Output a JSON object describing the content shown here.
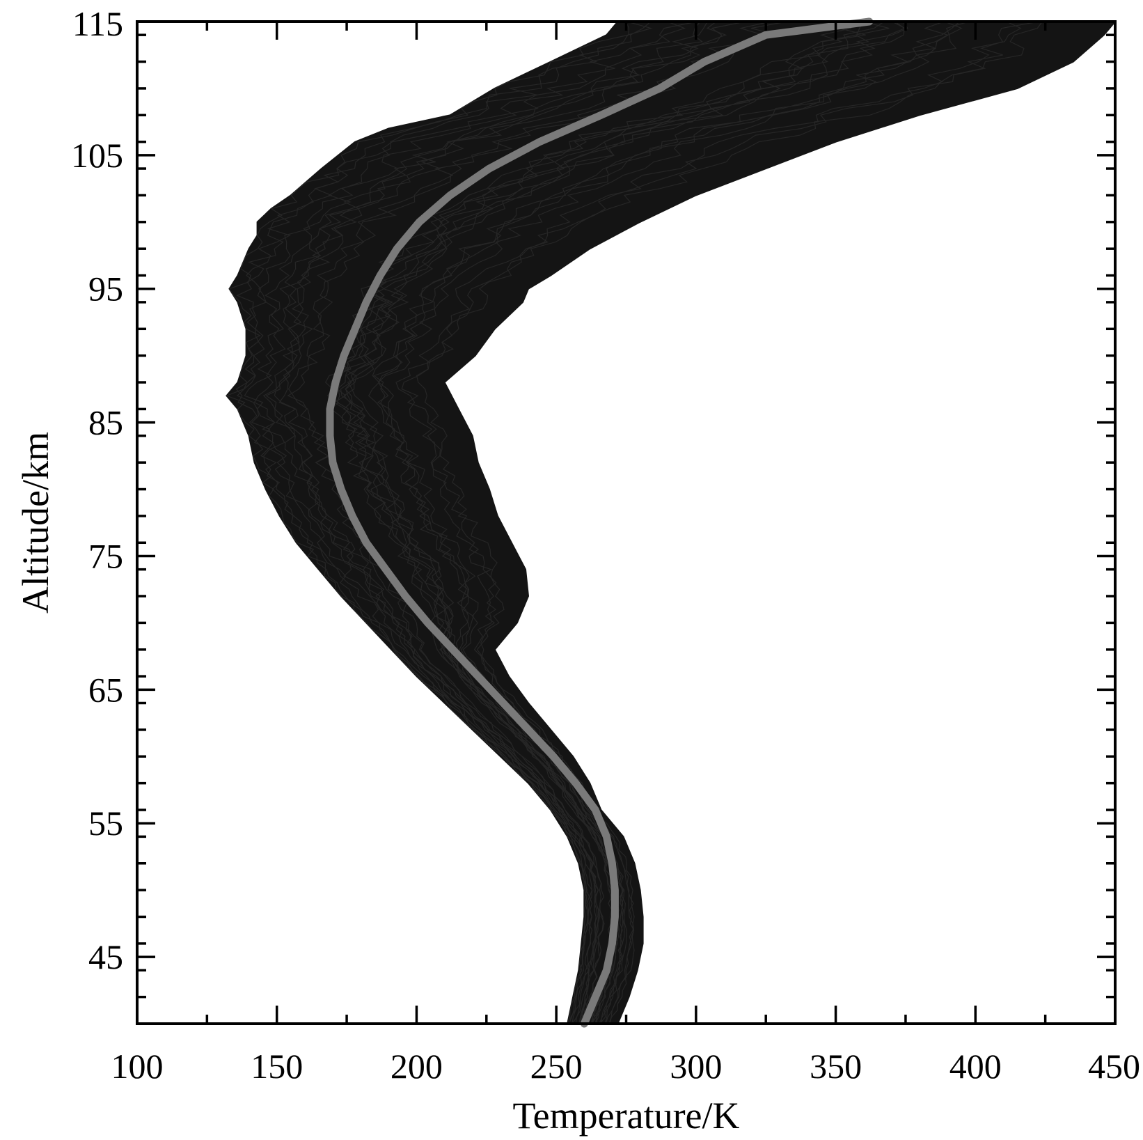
{
  "chart_data": {
    "type": "line",
    "title": "",
    "xlabel": "Temperature/K",
    "ylabel": "Altitude/km",
    "xlim": [
      100,
      450
    ],
    "ylim": [
      40,
      115
    ],
    "x_ticks": [
      100,
      150,
      200,
      250,
      300,
      350,
      400,
      450
    ],
    "y_ticks": [
      45,
      55,
      65,
      75,
      85,
      95,
      105,
      115
    ],
    "x_minor_step": 25,
    "y_minor_step": 2,
    "grid": false,
    "legend": "none",
    "series": [
      {
        "role": "mean-profile",
        "color": "#7a7a7a",
        "points": [
          [
            260,
            40
          ],
          [
            264,
            42
          ],
          [
            268,
            44
          ],
          [
            270,
            46
          ],
          [
            271,
            48
          ],
          [
            271,
            50
          ],
          [
            270,
            52
          ],
          [
            268,
            54
          ],
          [
            264,
            56
          ],
          [
            257,
            58
          ],
          [
            249,
            60
          ],
          [
            240,
            62
          ],
          [
            231,
            64
          ],
          [
            222,
            66
          ],
          [
            213,
            68
          ],
          [
            204,
            70
          ],
          [
            196,
            72
          ],
          [
            189,
            74
          ],
          [
            182,
            76
          ],
          [
            177,
            78
          ],
          [
            173,
            80
          ],
          [
            170,
            82
          ],
          [
            169,
            84
          ],
          [
            169,
            86
          ],
          [
            171,
            88
          ],
          [
            174,
            90
          ],
          [
            178,
            92
          ],
          [
            182,
            94
          ],
          [
            187,
            96
          ],
          [
            193,
            98
          ],
          [
            201,
            100
          ],
          [
            212,
            102
          ],
          [
            226,
            104
          ],
          [
            244,
            106
          ],
          [
            266,
            108
          ],
          [
            287,
            110
          ],
          [
            303,
            112
          ],
          [
            325,
            114
          ],
          [
            362,
            115
          ]
        ]
      }
    ],
    "ensemble": {
      "role": "individual-profiles",
      "color": "#141414",
      "left_envelope": [
        [
          254,
          40
        ],
        [
          256,
          42
        ],
        [
          258,
          44
        ],
        [
          259,
          46
        ],
        [
          260,
          48
        ],
        [
          260,
          50
        ],
        [
          258,
          52
        ],
        [
          254,
          54
        ],
        [
          248,
          56
        ],
        [
          240,
          58
        ],
        [
          230,
          60
        ],
        [
          220,
          62
        ],
        [
          210,
          64
        ],
        [
          200,
          66
        ],
        [
          191,
          68
        ],
        [
          182,
          70
        ],
        [
          173,
          72
        ],
        [
          165,
          74
        ],
        [
          157,
          76
        ],
        [
          151,
          78
        ],
        [
          146,
          80
        ],
        [
          142,
          82
        ],
        [
          140,
          84
        ],
        [
          136,
          86
        ],
        [
          132,
          87
        ],
        [
          136,
          88
        ],
        [
          139,
          90
        ],
        [
          139,
          92
        ],
        [
          136,
          94
        ],
        [
          133,
          95
        ],
        [
          136,
          96
        ],
        [
          140,
          98
        ],
        [
          143,
          99
        ],
        [
          143,
          100
        ],
        [
          148,
          101
        ],
        [
          155,
          102
        ],
        [
          166,
          104
        ],
        [
          178,
          106
        ],
        [
          190,
          107
        ],
        [
          212,
          108
        ],
        [
          228,
          110
        ],
        [
          248,
          112
        ],
        [
          268,
          114
        ],
        [
          272,
          115
        ]
      ],
      "right_envelope": [
        [
          272,
          40
        ],
        [
          276,
          42
        ],
        [
          279,
          44
        ],
        [
          281,
          46
        ],
        [
          281,
          48
        ],
        [
          280,
          50
        ],
        [
          278,
          52
        ],
        [
          274,
          54
        ],
        [
          270,
          55
        ],
        [
          266,
          56
        ],
        [
          262,
          58
        ],
        [
          256,
          60
        ],
        [
          248,
          62
        ],
        [
          240,
          64
        ],
        [
          233,
          66
        ],
        [
          228,
          68
        ],
        [
          236,
          70
        ],
        [
          240,
          72
        ],
        [
          239,
          74
        ],
        [
          234,
          76
        ],
        [
          229,
          78
        ],
        [
          226,
          80
        ],
        [
          222,
          82
        ],
        [
          220,
          84
        ],
        [
          215,
          86
        ],
        [
          210,
          88
        ],
        [
          221,
          90
        ],
        [
          228,
          92
        ],
        [
          238,
          94
        ],
        [
          240,
          95
        ],
        [
          248,
          96
        ],
        [
          262,
          98
        ],
        [
          280,
          100
        ],
        [
          300,
          102
        ],
        [
          325,
          104
        ],
        [
          350,
          106
        ],
        [
          380,
          108
        ],
        [
          415,
          110
        ],
        [
          435,
          112
        ],
        [
          446,
          114
        ],
        [
          450,
          115
        ]
      ]
    }
  }
}
